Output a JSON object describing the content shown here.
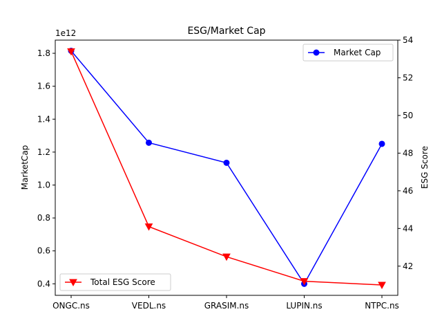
{
  "chart_data": {
    "type": "line",
    "title": "ESG/Market Cap",
    "categories": [
      "ONGC.ns",
      "VEDL.ns",
      "GRASIM.ns",
      "LUPIN.ns",
      "NTPC.ns"
    ],
    "left_axis": {
      "label": "MarketCap",
      "offset_text": "1e12",
      "ylim": [
        0.33,
        1.88
      ],
      "ticks": [
        0.4,
        0.6,
        0.8,
        1.0,
        1.2,
        1.4,
        1.6,
        1.8
      ],
      "tick_labels": [
        "0.4",
        "0.6",
        "0.8",
        "1.0",
        "1.2",
        "1.4",
        "1.6",
        "1.8"
      ]
    },
    "right_axis": {
      "label": "ESG Score",
      "ylim": [
        40.45,
        54.0
      ],
      "ticks": [
        42,
        44,
        46,
        48,
        50,
        52,
        54
      ],
      "tick_labels": [
        "42",
        "44",
        "46",
        "48",
        "50",
        "52",
        "54"
      ]
    },
    "series": [
      {
        "name": "Market Cap",
        "axis": "left",
        "color": "#0000ff",
        "marker": "circle",
        "values": [
          1.815,
          1.257,
          1.135,
          0.4,
          1.25
        ]
      },
      {
        "name": "Total ESG Score",
        "axis": "right",
        "color": "#ff0000",
        "marker": "triangle-down",
        "values": [
          53.4,
          44.1,
          42.5,
          41.2,
          41.0
        ]
      }
    ],
    "legends": [
      {
        "series": 0,
        "placement": "upper right"
      },
      {
        "series": 1,
        "placement": "lower left"
      }
    ],
    "grid": false
  }
}
